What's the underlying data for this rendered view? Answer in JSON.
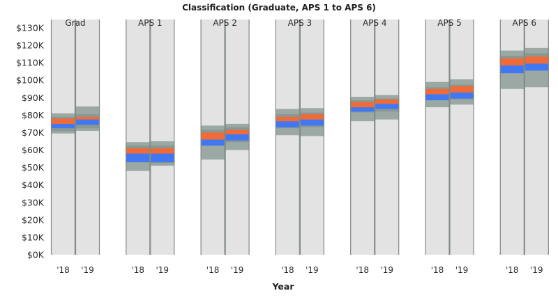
{
  "chart_data": {
    "type": "bar",
    "title": "Classification (Graduate, APS 1 to APS 6)",
    "xlabel": "Year",
    "ylabel": "",
    "ylim": [
      0,
      130000
    ],
    "yticks": [
      0,
      10000,
      20000,
      30000,
      40000,
      50000,
      60000,
      70000,
      80000,
      90000,
      100000,
      110000,
      120000,
      130000
    ],
    "ytick_labels": [
      "$0K",
      "$10K",
      "$20K",
      "$30K",
      "$40K",
      "$50K",
      "$60K",
      "$70K",
      "$80K",
      "$90K",
      "$100K",
      "$110K",
      "$120K",
      "$130K"
    ],
    "groups": [
      "Grad",
      "APS 1",
      "APS 2",
      "APS 3",
      "APS 4",
      "APS 5",
      "APS 6"
    ],
    "years": [
      "'18",
      "'19"
    ],
    "bands": [
      {
        "group": "Grad",
        "year": "'18",
        "min": 69500,
        "q1": 71000,
        "blue": [
          72500,
          75000
        ],
        "orange": [
          75000,
          78000
        ],
        "q3": 79000,
        "max": 81000
      },
      {
        "group": "Grad",
        "year": "'19",
        "min": 71000,
        "q1": 72500,
        "blue": [
          74500,
          77500
        ],
        "orange": [
          77500,
          79000
        ],
        "q3": 80500,
        "max": 85000
      },
      {
        "group": "APS 1",
        "year": "'18",
        "min": 48000,
        "q1": 53000,
        "blue": [
          53000,
          58000
        ],
        "orange": [
          58000,
          61000
        ],
        "q3": 62500,
        "max": 64500
      },
      {
        "group": "APS 1",
        "year": "'19",
        "min": 51000,
        "q1": 52500,
        "blue": [
          53000,
          58000
        ],
        "orange": [
          58000,
          61000
        ],
        "q3": 62500,
        "max": 65000
      },
      {
        "group": "APS 2",
        "year": "'18",
        "min": 54500,
        "q1": 62500,
        "blue": [
          62500,
          66000
        ],
        "orange": [
          66000,
          70000
        ],
        "q3": 71500,
        "max": 74000
      },
      {
        "group": "APS 2",
        "year": "'19",
        "min": 60000,
        "q1": 64500,
        "blue": [
          65500,
          69000
        ],
        "orange": [
          69000,
          71500
        ],
        "q3": 73000,
        "max": 75000
      },
      {
        "group": "APS 3",
        "year": "'18",
        "min": 68500,
        "q1": 72500,
        "blue": [
          73000,
          76500
        ],
        "orange": [
          76500,
          79000
        ],
        "q3": 80500,
        "max": 83500
      },
      {
        "group": "APS 3",
        "year": "'19",
        "min": 68000,
        "q1": 73000,
        "blue": [
          74000,
          77500
        ],
        "orange": [
          77500,
          80500
        ],
        "q3": 81500,
        "max": 84000
      },
      {
        "group": "APS 4",
        "year": "'18",
        "min": 76500,
        "q1": 81500,
        "blue": [
          82000,
          84500
        ],
        "orange": [
          84500,
          87500
        ],
        "q3": 88500,
        "max": 90500
      },
      {
        "group": "APS 4",
        "year": "'19",
        "min": 77500,
        "q1": 82000,
        "blue": [
          83500,
          86500
        ],
        "orange": [
          86500,
          89000
        ],
        "q3": 89500,
        "max": 91500
      },
      {
        "group": "APS 5",
        "year": "'18",
        "min": 84500,
        "q1": 88500,
        "blue": [
          88500,
          92000
        ],
        "orange": [
          92000,
          95000
        ],
        "q3": 96000,
        "max": 99000
      },
      {
        "group": "APS 5",
        "year": "'19",
        "min": 86000,
        "q1": 89000,
        "blue": [
          89500,
          93000
        ],
        "orange": [
          93000,
          96500
        ],
        "q3": 97500,
        "max": 100500
      },
      {
        "group": "APS 6",
        "year": "'18",
        "min": 95000,
        "q1": 104000,
        "blue": [
          104000,
          108500
        ],
        "orange": [
          108500,
          112500
        ],
        "q3": 114000,
        "max": 117000
      },
      {
        "group": "APS 6",
        "year": "'19",
        "min": 96000,
        "q1": 105500,
        "blue": [
          105500,
          109500
        ],
        "orange": [
          109500,
          113500
        ],
        "q3": 115500,
        "max": 118500
      }
    ],
    "colors": {
      "background_column": "#e3e3e3",
      "column_border": "#7f8a86",
      "outer_band": "#9ca8a4",
      "inner_band": "#8a9894",
      "blue": "#4178f2",
      "orange": "#f06b37"
    },
    "grid": false,
    "legend": "none"
  }
}
